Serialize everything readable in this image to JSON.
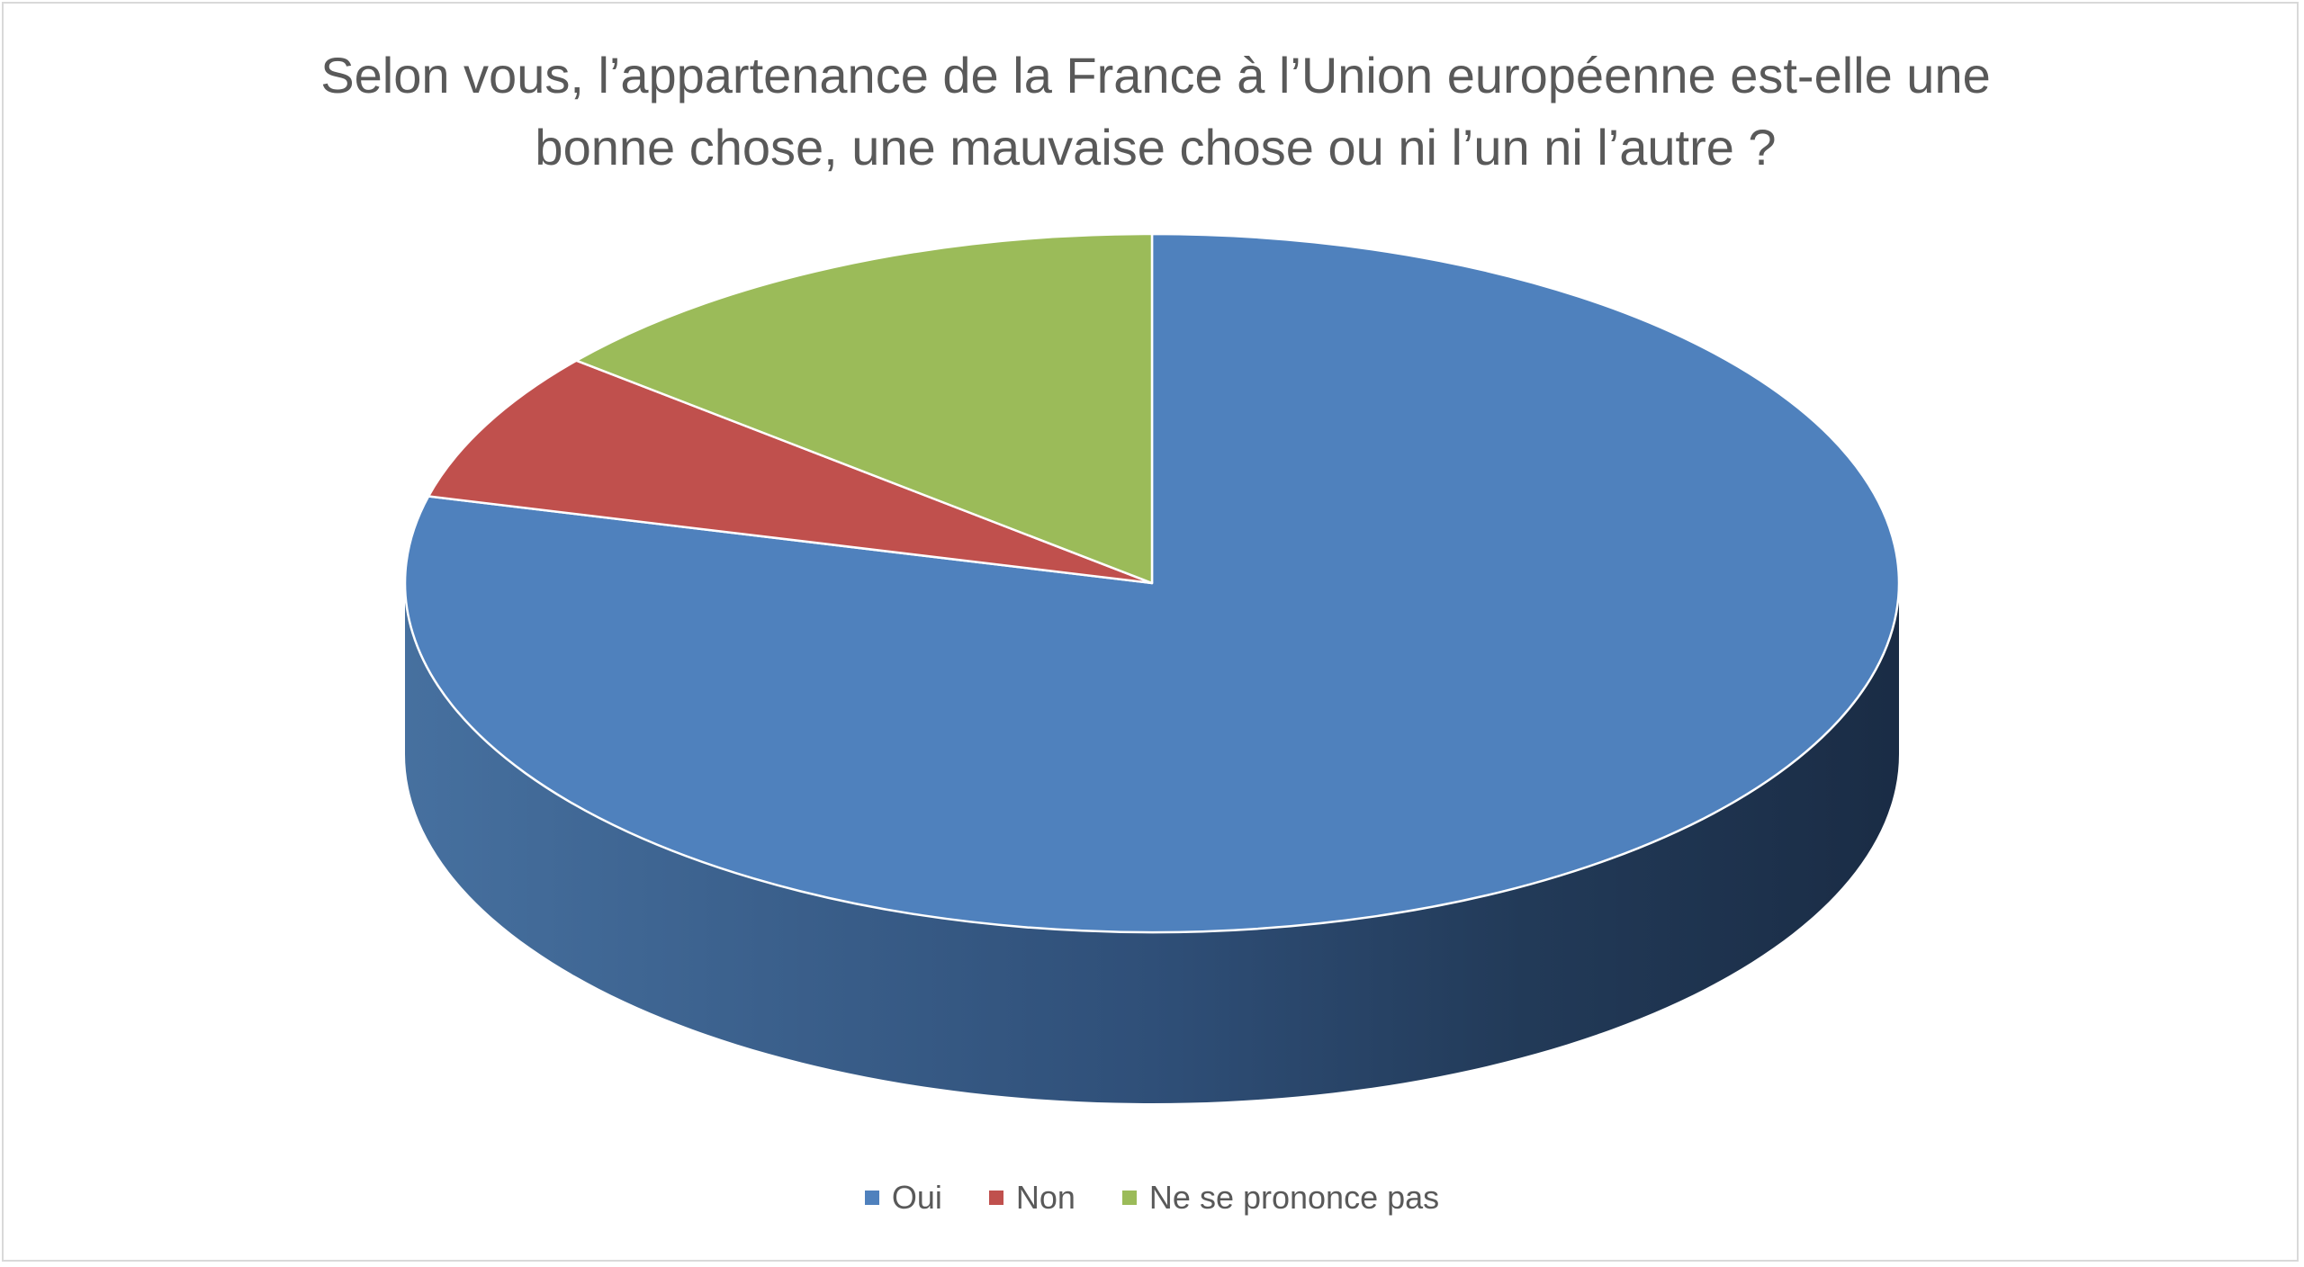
{
  "chart_data": {
    "type": "pie",
    "title_lines": [
      "Selon vous, l’appartenance de la France à l’Union européenne est-elle une",
      "bonne chose, une mauvaise chose ou ni l’un ni l’autre ?"
    ],
    "categories": [
      "Oui",
      "Non",
      "Ne se prononce pas"
    ],
    "values": [
      79,
      7,
      14
    ],
    "colors": [
      "#4f81bd",
      "#c0504d",
      "#9bbb59"
    ],
    "side_colors": [
      "#3f6a9c",
      "#2a4a72",
      "#1c2f48"
    ],
    "style": "3d",
    "legend_position": "bottom"
  }
}
